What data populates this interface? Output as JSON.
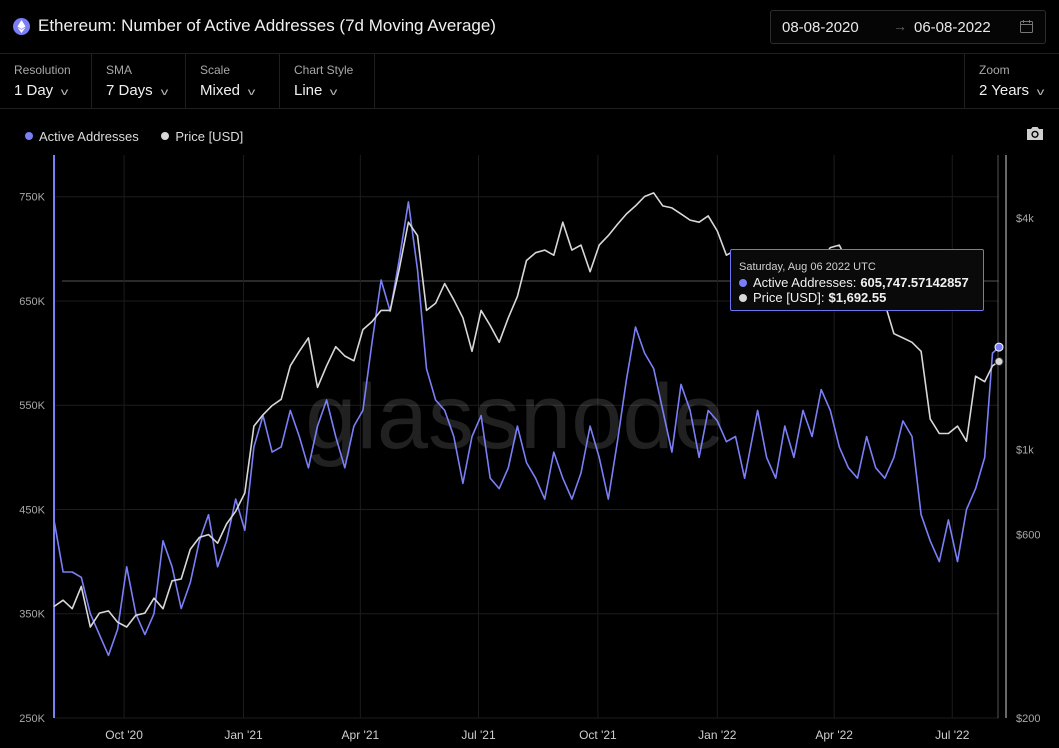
{
  "header": {
    "title": "Ethereum: Number of Active Addresses (7d Moving Average)",
    "date_from": "08-08-2020",
    "date_to": "06-08-2022",
    "arrow": "→"
  },
  "controls": {
    "resolution": {
      "label": "Resolution",
      "value": "1 Day"
    },
    "sma": {
      "label": "SMA",
      "value": "7 Days"
    },
    "scale": {
      "label": "Scale",
      "value": "Mixed"
    },
    "chart_style": {
      "label": "Chart Style",
      "value": "Line"
    },
    "zoom": {
      "label": "Zoom",
      "value": "2 Years"
    }
  },
  "legend": {
    "active": "Active Addresses",
    "price": "Price [USD]"
  },
  "watermark": "glassnode",
  "tooltip": {
    "date": "Saturday, Aug 06 2022 UTC",
    "active_label": "Active Addresses:",
    "active_value": "605,747.57142857",
    "price_label": "Price [USD]:",
    "price_value": "$1,692.55"
  },
  "colors": {
    "active": "#7b7ff6",
    "price": "#d8d8d8",
    "background": "#000000"
  },
  "chart_data": {
    "type": "line",
    "x_ticks": [
      "Oct '20",
      "Jan '21",
      "Apr '21",
      "Jul '21",
      "Oct '21",
      "Jan '22",
      "Apr '22",
      "Jul '22"
    ],
    "y_left_ticks": [
      "250K",
      "350K",
      "450K",
      "550K",
      "650K",
      "750K"
    ],
    "y_right_ticks": [
      "$200",
      "$600",
      "$1k",
      "$4k"
    ],
    "ylim_left": [
      250000,
      790000
    ],
    "y_right_scale": "log",
    "grid": true,
    "series": [
      {
        "name": "Active Addresses",
        "axis": "left",
        "points": [
          [
            "2020-08-08",
            440000
          ],
          [
            "2020-08-15",
            390000
          ],
          [
            "2020-08-22",
            390000
          ],
          [
            "2020-08-29",
            385000
          ],
          [
            "2020-09-05",
            350000
          ],
          [
            "2020-09-12",
            330000
          ],
          [
            "2020-09-19",
            310000
          ],
          [
            "2020-09-26",
            335000
          ],
          [
            "2020-10-03",
            395000
          ],
          [
            "2020-10-10",
            350000
          ],
          [
            "2020-10-17",
            330000
          ],
          [
            "2020-10-24",
            350000
          ],
          [
            "2020-10-31",
            420000
          ],
          [
            "2020-11-07",
            395000
          ],
          [
            "2020-11-14",
            355000
          ],
          [
            "2020-11-21",
            380000
          ],
          [
            "2020-11-28",
            420000
          ],
          [
            "2020-12-05",
            445000
          ],
          [
            "2020-12-12",
            395000
          ],
          [
            "2020-12-19",
            420000
          ],
          [
            "2020-12-26",
            460000
          ],
          [
            "2021-01-02",
            430000
          ],
          [
            "2021-01-09",
            510000
          ],
          [
            "2021-01-16",
            540000
          ],
          [
            "2021-01-23",
            505000
          ],
          [
            "2021-01-30",
            510000
          ],
          [
            "2021-02-06",
            545000
          ],
          [
            "2021-02-13",
            520000
          ],
          [
            "2021-02-20",
            490000
          ],
          [
            "2021-02-27",
            530000
          ],
          [
            "2021-03-06",
            555000
          ],
          [
            "2021-03-13",
            520000
          ],
          [
            "2021-03-20",
            490000
          ],
          [
            "2021-03-27",
            530000
          ],
          [
            "2021-04-03",
            545000
          ],
          [
            "2021-04-10",
            610000
          ],
          [
            "2021-04-17",
            670000
          ],
          [
            "2021-04-24",
            640000
          ],
          [
            "2021-05-01",
            690000
          ],
          [
            "2021-05-08",
            745000
          ],
          [
            "2021-05-15",
            680000
          ],
          [
            "2021-05-22",
            585000
          ],
          [
            "2021-05-29",
            555000
          ],
          [
            "2021-06-05",
            545000
          ],
          [
            "2021-06-12",
            520000
          ],
          [
            "2021-06-19",
            475000
          ],
          [
            "2021-06-26",
            520000
          ],
          [
            "2021-07-03",
            540000
          ],
          [
            "2021-07-10",
            480000
          ],
          [
            "2021-07-17",
            470000
          ],
          [
            "2021-07-24",
            490000
          ],
          [
            "2021-07-31",
            530000
          ],
          [
            "2021-08-07",
            495000
          ],
          [
            "2021-08-14",
            480000
          ],
          [
            "2021-08-21",
            460000
          ],
          [
            "2021-08-28",
            505000
          ],
          [
            "2021-09-04",
            480000
          ],
          [
            "2021-09-11",
            460000
          ],
          [
            "2021-09-18",
            485000
          ],
          [
            "2021-09-25",
            530000
          ],
          [
            "2021-10-02",
            500000
          ],
          [
            "2021-10-09",
            460000
          ],
          [
            "2021-10-16",
            515000
          ],
          [
            "2021-10-23",
            575000
          ],
          [
            "2021-10-30",
            625000
          ],
          [
            "2021-11-06",
            600000
          ],
          [
            "2021-11-13",
            585000
          ],
          [
            "2021-11-20",
            545000
          ],
          [
            "2021-11-27",
            505000
          ],
          [
            "2021-12-04",
            570000
          ],
          [
            "2021-12-11",
            545000
          ],
          [
            "2021-12-18",
            500000
          ],
          [
            "2021-12-25",
            545000
          ],
          [
            "2022-01-01",
            535000
          ],
          [
            "2022-01-08",
            515000
          ],
          [
            "2022-01-15",
            520000
          ],
          [
            "2022-01-22",
            480000
          ],
          [
            "2022-02-01",
            545000
          ],
          [
            "2022-02-08",
            500000
          ],
          [
            "2022-02-15",
            480000
          ],
          [
            "2022-02-22",
            530000
          ],
          [
            "2022-03-01",
            500000
          ],
          [
            "2022-03-08",
            545000
          ],
          [
            "2022-03-15",
            520000
          ],
          [
            "2022-03-22",
            565000
          ],
          [
            "2022-03-29",
            545000
          ],
          [
            "2022-04-05",
            510000
          ],
          [
            "2022-04-12",
            490000
          ],
          [
            "2022-04-19",
            480000
          ],
          [
            "2022-04-26",
            520000
          ],
          [
            "2022-05-03",
            490000
          ],
          [
            "2022-05-10",
            480000
          ],
          [
            "2022-05-17",
            500000
          ],
          [
            "2022-05-24",
            535000
          ],
          [
            "2022-05-31",
            520000
          ],
          [
            "2022-06-07",
            445000
          ],
          [
            "2022-06-14",
            420000
          ],
          [
            "2022-06-21",
            400000
          ],
          [
            "2022-06-28",
            440000
          ],
          [
            "2022-07-05",
            400000
          ],
          [
            "2022-07-12",
            450000
          ],
          [
            "2022-07-19",
            470000
          ],
          [
            "2022-07-26",
            500000
          ],
          [
            "2022-08-01",
            600000
          ],
          [
            "2022-08-06",
            605748
          ]
        ]
      },
      {
        "name": "Price [USD]",
        "axis": "right",
        "points": [
          [
            "2020-08-08",
            390
          ],
          [
            "2020-08-15",
            405
          ],
          [
            "2020-08-22",
            385
          ],
          [
            "2020-08-29",
            440
          ],
          [
            "2020-09-05",
            345
          ],
          [
            "2020-09-12",
            375
          ],
          [
            "2020-09-19",
            380
          ],
          [
            "2020-09-26",
            355
          ],
          [
            "2020-10-03",
            345
          ],
          [
            "2020-10-10",
            370
          ],
          [
            "2020-10-17",
            375
          ],
          [
            "2020-10-24",
            410
          ],
          [
            "2020-10-31",
            385
          ],
          [
            "2020-11-07",
            455
          ],
          [
            "2020-11-14",
            460
          ],
          [
            "2020-11-21",
            550
          ],
          [
            "2020-11-28",
            590
          ],
          [
            "2020-12-05",
            600
          ],
          [
            "2020-12-12",
            570
          ],
          [
            "2020-12-19",
            640
          ],
          [
            "2020-12-26",
            690
          ],
          [
            "2021-01-02",
            770
          ],
          [
            "2021-01-09",
            1150
          ],
          [
            "2021-01-16",
            1230
          ],
          [
            "2021-01-23",
            1300
          ],
          [
            "2021-01-30",
            1350
          ],
          [
            "2021-02-06",
            1650
          ],
          [
            "2021-02-13",
            1800
          ],
          [
            "2021-02-20",
            1950
          ],
          [
            "2021-02-27",
            1450
          ],
          [
            "2021-03-06",
            1650
          ],
          [
            "2021-03-13",
            1850
          ],
          [
            "2021-03-20",
            1750
          ],
          [
            "2021-03-27",
            1700
          ],
          [
            "2021-04-03",
            2050
          ],
          [
            "2021-04-10",
            2150
          ],
          [
            "2021-04-17",
            2300
          ],
          [
            "2021-04-24",
            2300
          ],
          [
            "2021-05-01",
            2950
          ],
          [
            "2021-05-08",
            3900
          ],
          [
            "2021-05-15",
            3600
          ],
          [
            "2021-05-22",
            2300
          ],
          [
            "2021-05-29",
            2400
          ],
          [
            "2021-06-05",
            2700
          ],
          [
            "2021-06-12",
            2450
          ],
          [
            "2021-06-19",
            2200
          ],
          [
            "2021-06-26",
            1800
          ],
          [
            "2021-07-03",
            2300
          ],
          [
            "2021-07-10",
            2100
          ],
          [
            "2021-07-17",
            1900
          ],
          [
            "2021-07-24",
            2200
          ],
          [
            "2021-07-31",
            2500
          ],
          [
            "2021-08-07",
            3100
          ],
          [
            "2021-08-14",
            3250
          ],
          [
            "2021-08-21",
            3300
          ],
          [
            "2021-08-28",
            3200
          ],
          [
            "2021-09-04",
            3900
          ],
          [
            "2021-09-11",
            3300
          ],
          [
            "2021-09-18",
            3400
          ],
          [
            "2021-09-25",
            2900
          ],
          [
            "2021-10-02",
            3400
          ],
          [
            "2021-10-09",
            3600
          ],
          [
            "2021-10-16",
            3850
          ],
          [
            "2021-10-23",
            4100
          ],
          [
            "2021-10-30",
            4300
          ],
          [
            "2021-11-06",
            4550
          ],
          [
            "2021-11-13",
            4650
          ],
          [
            "2021-11-20",
            4300
          ],
          [
            "2021-11-27",
            4250
          ],
          [
            "2021-12-04",
            4100
          ],
          [
            "2021-12-11",
            3950
          ],
          [
            "2021-12-18",
            3900
          ],
          [
            "2021-12-25",
            4050
          ],
          [
            "2022-01-01",
            3700
          ],
          [
            "2022-01-08",
            3200
          ],
          [
            "2022-01-15",
            3300
          ],
          [
            "2022-01-22",
            2500
          ],
          [
            "2022-02-01",
            2700
          ],
          [
            "2022-02-08",
            3100
          ],
          [
            "2022-02-15",
            2900
          ],
          [
            "2022-02-22",
            2600
          ],
          [
            "2022-03-01",
            2900
          ],
          [
            "2022-03-08",
            2600
          ],
          [
            "2022-03-15",
            2650
          ],
          [
            "2022-03-22",
            3100
          ],
          [
            "2022-03-29",
            3350
          ],
          [
            "2022-04-05",
            3400
          ],
          [
            "2022-04-12",
            3050
          ],
          [
            "2022-04-19",
            3100
          ],
          [
            "2022-04-26",
            2900
          ],
          [
            "2022-05-03",
            2850
          ],
          [
            "2022-05-10",
            2400
          ],
          [
            "2022-05-17",
            2000
          ],
          [
            "2022-05-24",
            1950
          ],
          [
            "2022-05-31",
            1900
          ],
          [
            "2022-06-07",
            1800
          ],
          [
            "2022-06-14",
            1200
          ],
          [
            "2022-06-21",
            1100
          ],
          [
            "2022-06-28",
            1100
          ],
          [
            "2022-07-05",
            1150
          ],
          [
            "2022-07-12",
            1050
          ],
          [
            "2022-07-19",
            1550
          ],
          [
            "2022-07-26",
            1500
          ],
          [
            "2022-08-01",
            1650
          ],
          [
            "2022-08-06",
            1692.55
          ]
        ]
      }
    ]
  }
}
